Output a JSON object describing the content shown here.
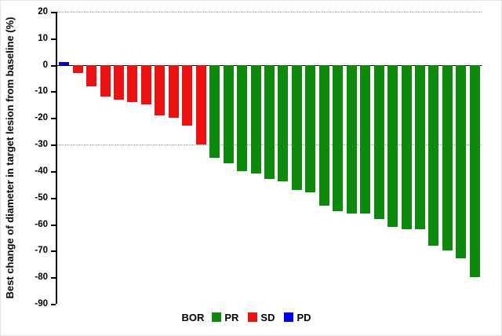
{
  "chart_data": {
    "type": "bar",
    "subtype": "waterfall",
    "title": "",
    "xlabel": "",
    "ylabel": "Best change of diameter in target lesion from baseline (%)",
    "ylim": [
      -90,
      20
    ],
    "yticks": [
      20,
      10,
      0,
      -10,
      -20,
      -30,
      -40,
      -50,
      -60,
      -70,
      -80,
      -90
    ],
    "gridlines": [
      20,
      -30
    ],
    "grid": "horizontal-dotted",
    "legend_position": "bottom",
    "legend": {
      "title": "BOR",
      "entries": [
        {
          "label": "PR",
          "color": "#0b8a0b"
        },
        {
          "label": "SD",
          "color": "#ee1111"
        },
        {
          "label": "PD",
          "color": "#0000ee"
        }
      ]
    },
    "colors": {
      "PR": "#0b8a0b",
      "SD": "#ee1111",
      "PD": "#0000ee"
    },
    "series": [
      {
        "bor": "PD",
        "value": 1
      },
      {
        "bor": "SD",
        "value": -3
      },
      {
        "bor": "SD",
        "value": -8
      },
      {
        "bor": "SD",
        "value": -12
      },
      {
        "bor": "SD",
        "value": -13
      },
      {
        "bor": "SD",
        "value": -14
      },
      {
        "bor": "SD",
        "value": -15
      },
      {
        "bor": "SD",
        "value": -19
      },
      {
        "bor": "SD",
        "value": -20
      },
      {
        "bor": "SD",
        "value": -23
      },
      {
        "bor": "SD",
        "value": -30
      },
      {
        "bor": "PR",
        "value": -35
      },
      {
        "bor": "PR",
        "value": -37
      },
      {
        "bor": "PR",
        "value": -40
      },
      {
        "bor": "PR",
        "value": -41
      },
      {
        "bor": "PR",
        "value": -43
      },
      {
        "bor": "PR",
        "value": -44
      },
      {
        "bor": "PR",
        "value": -47
      },
      {
        "bor": "PR",
        "value": -48
      },
      {
        "bor": "PR",
        "value": -53
      },
      {
        "bor": "PR",
        "value": -55
      },
      {
        "bor": "PR",
        "value": -56
      },
      {
        "bor": "PR",
        "value": -56
      },
      {
        "bor": "PR",
        "value": -58
      },
      {
        "bor": "PR",
        "value": -61
      },
      {
        "bor": "PR",
        "value": -62
      },
      {
        "bor": "PR",
        "value": -62
      },
      {
        "bor": "PR",
        "value": -68
      },
      {
        "bor": "PR",
        "value": -70
      },
      {
        "bor": "PR",
        "value": -73
      },
      {
        "bor": "PR",
        "value": -80
      }
    ]
  }
}
